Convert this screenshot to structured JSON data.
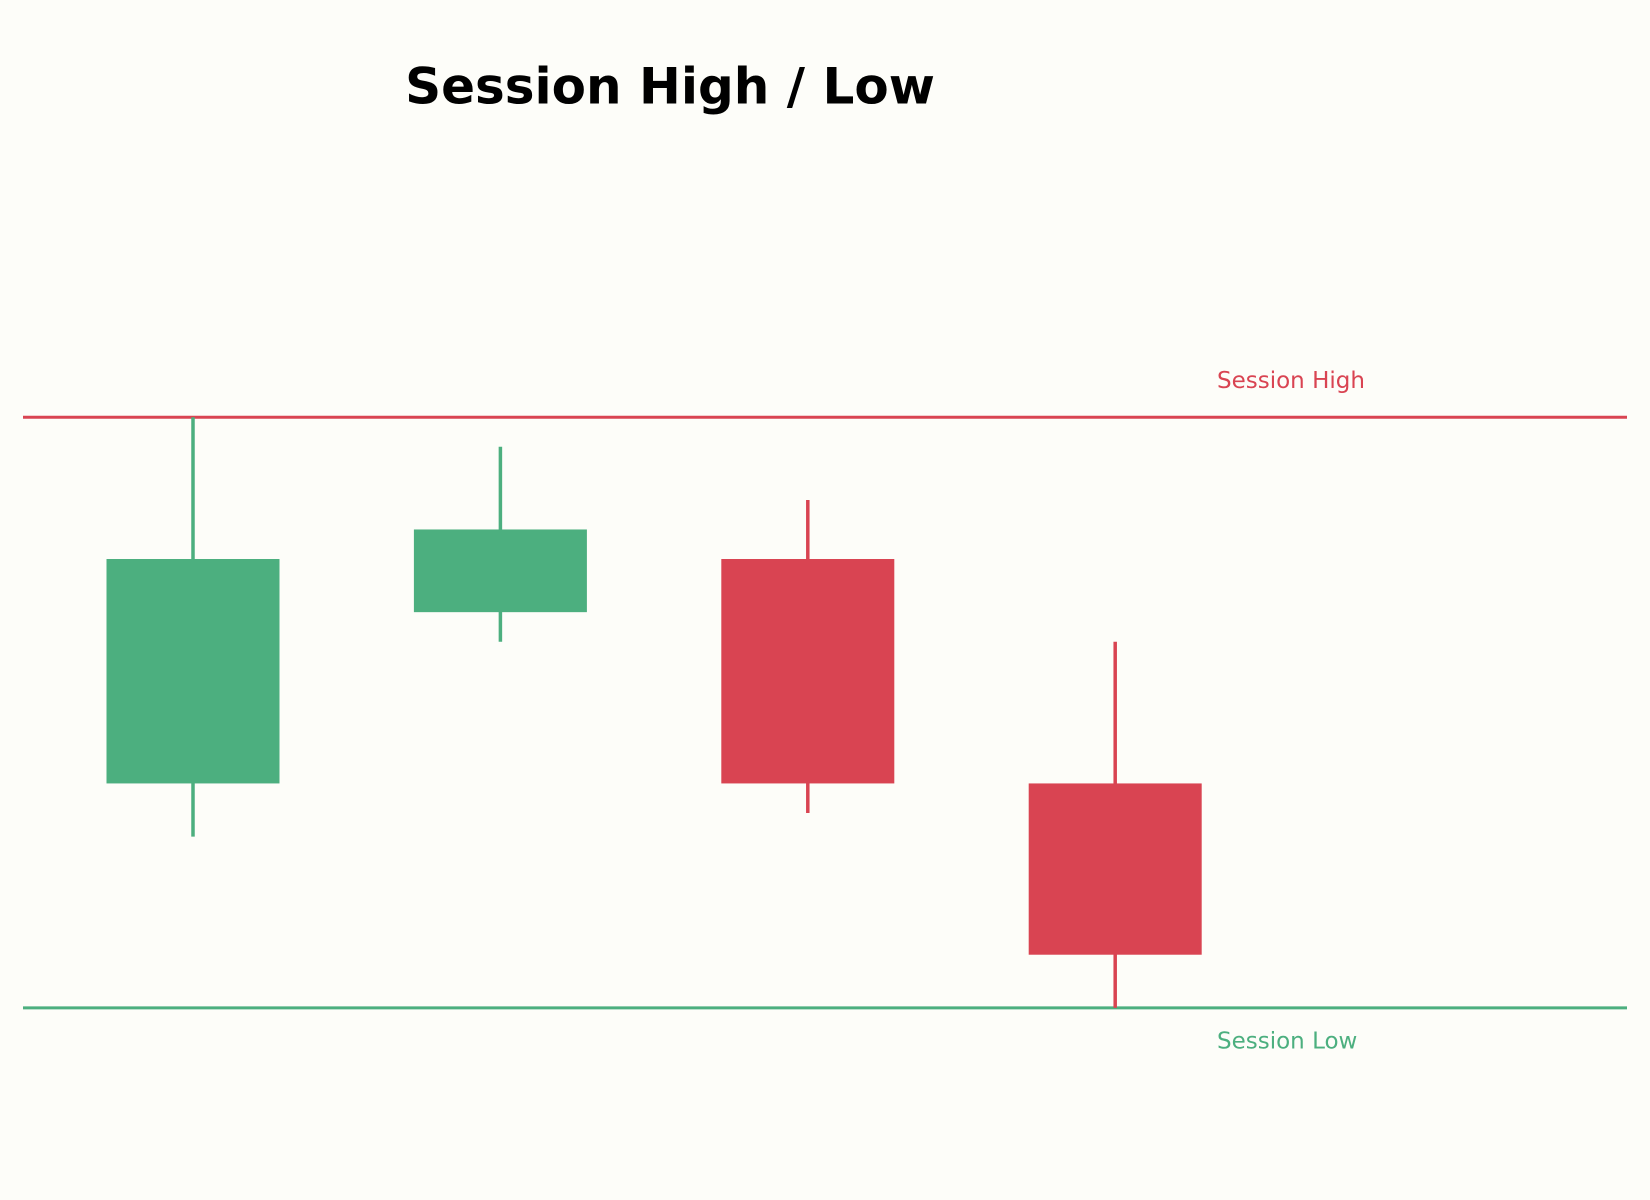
{
  "chart_data": {
    "type": "candlestick",
    "title": "Session High / Low",
    "open": [
      38,
      67,
      76,
      38
    ],
    "high": [
      100,
      95,
      86,
      62
    ],
    "low": [
      29,
      62,
      33,
      0
    ],
    "close": [
      76,
      81,
      38,
      9
    ],
    "up_color": "#4caf7f",
    "down_color": "#d94452",
    "ylim": [
      -20,
      140
    ],
    "hlines": [
      {
        "label": "Session High",
        "value": 100,
        "color": "#d94452"
      },
      {
        "label": "Session Low",
        "value": 0,
        "color": "#4caf7f"
      }
    ]
  }
}
